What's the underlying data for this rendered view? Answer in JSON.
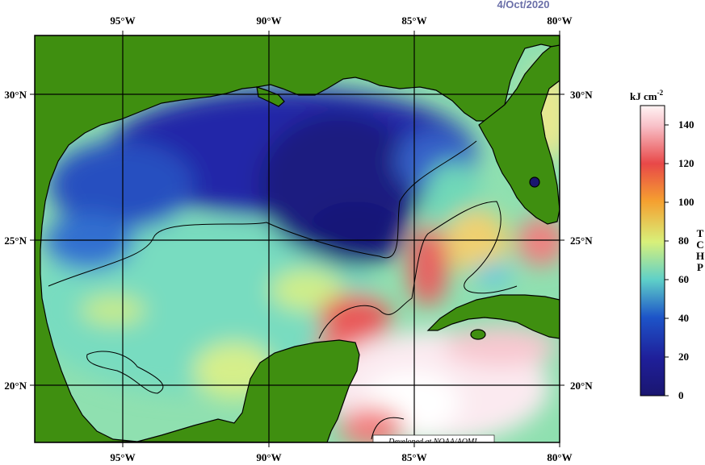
{
  "date": "4/Oct/2020",
  "credit": "Developed at NOAA/AOML",
  "lon_labels": [
    "95°W",
    "90°W",
    "85°W",
    "80°W"
  ],
  "lat_labels": [
    "30°N",
    "25°N",
    "20°N"
  ],
  "colorbar": {
    "unit": "kJ cm",
    "unit_exp": "-2",
    "title_letters": [
      "T",
      "C",
      "H",
      "P"
    ],
    "ticks": [
      "0",
      "20",
      "40",
      "60",
      "80",
      "100",
      "120",
      "140"
    ],
    "range": [
      0,
      150
    ]
  },
  "colors": {
    "land": "#3f8f10",
    "c0": "#1a1670",
    "c20": "#1f1f9a",
    "c40": "#1d54c8",
    "c60": "#5fd0c8",
    "c80": "#d8f07a",
    "c100": "#f5a030",
    "c120": "#e84848",
    "c140": "#f8d0d8"
  }
}
